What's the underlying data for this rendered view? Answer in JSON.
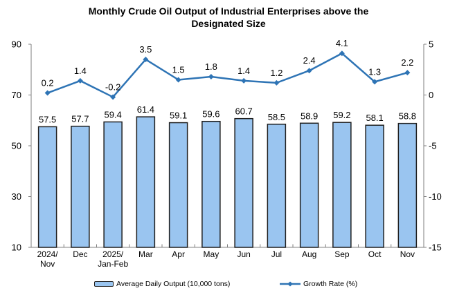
{
  "title": {
    "lines": [
      "Monthly Crude Oil Output of Industrial Enterprises above the",
      "Designated Size"
    ]
  },
  "chart_data": {
    "type": "combo-bar-line",
    "title": "Monthly Crude Oil Output of Industrial Enterprises above the Designated Size",
    "categories": [
      "2024/\nNov",
      "Dec",
      "2025/\nJan-Feb",
      "Mar",
      "Apr",
      "May",
      "Jun",
      "Jul",
      "Aug",
      "Sep",
      "Oct",
      "Nov"
    ],
    "series": [
      {
        "name": "Average Daily Output (10,000 tons)",
        "type": "bar",
        "axis": "left",
        "values": [
          57.5,
          57.7,
          59.4,
          61.4,
          59.1,
          59.6,
          60.7,
          58.5,
          58.9,
          59.2,
          58.1,
          58.8
        ],
        "fill": "#9AC5F0",
        "border": "#1F1F1F"
      },
      {
        "name": "Growth Rate (%)",
        "type": "line",
        "axis": "right",
        "values": [
          0.2,
          1.4,
          -0.2,
          3.5,
          1.5,
          1.8,
          1.4,
          1.2,
          2.4,
          4.1,
          1.3,
          2.2
        ],
        "color": "#2E74B5",
        "marker": "diamond"
      }
    ],
    "left_axis": {
      "min": 10,
      "max": 90,
      "ticks": [
        10,
        30,
        50,
        70,
        90
      ]
    },
    "right_axis": {
      "min": -15,
      "max": 5,
      "ticks": [
        -15,
        -10,
        -5,
        0,
        5
      ]
    },
    "axis_color": "#7F7F7F",
    "text_color": "#000000",
    "grid": false,
    "data_labels": true,
    "label_decimals": 1,
    "legend_position": "bottom"
  }
}
